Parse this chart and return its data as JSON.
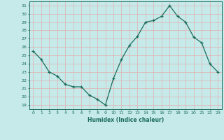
{
  "x": [
    0,
    1,
    2,
    3,
    4,
    5,
    6,
    7,
    8,
    9,
    10,
    11,
    12,
    13,
    14,
    15,
    16,
    17,
    18,
    19,
    20,
    21,
    22,
    23
  ],
  "y": [
    25.5,
    24.5,
    23.0,
    22.5,
    21.5,
    21.2,
    21.2,
    20.2,
    19.7,
    19.0,
    22.2,
    24.5,
    26.2,
    27.3,
    29.0,
    29.2,
    29.7,
    31.0,
    29.7,
    29.0,
    27.2,
    26.5,
    24.0,
    23.0
  ],
  "xlabel": "Humidex (Indice chaleur)",
  "bg_color": "#c6eaea",
  "grid_color": "#ddb8b8",
  "line_color": "#1a6b5a",
  "xlim": [
    -0.5,
    23.5
  ],
  "ylim": [
    18.5,
    31.5
  ],
  "yticks": [
    19,
    20,
    21,
    22,
    23,
    24,
    25,
    26,
    27,
    28,
    29,
    30,
    31
  ],
  "xticks": [
    0,
    1,
    2,
    3,
    4,
    5,
    6,
    7,
    8,
    9,
    10,
    11,
    12,
    13,
    14,
    15,
    16,
    17,
    18,
    19,
    20,
    21,
    22,
    23
  ]
}
